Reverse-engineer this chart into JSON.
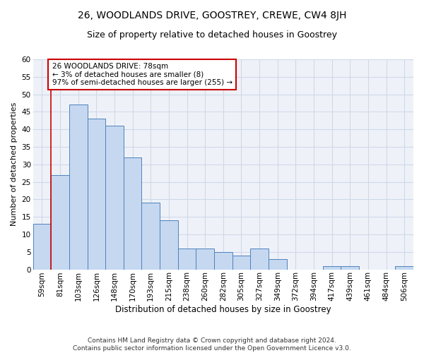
{
  "title": "26, WOODLANDS DRIVE, GOOSTREY, CREWE, CW4 8JH",
  "subtitle": "Size of property relative to detached houses in Goostrey",
  "xlabel": "Distribution of detached houses by size in Goostrey",
  "ylabel": "Number of detached properties",
  "categories": [
    "59sqm",
    "81sqm",
    "103sqm",
    "126sqm",
    "148sqm",
    "170sqm",
    "193sqm",
    "215sqm",
    "238sqm",
    "260sqm",
    "282sqm",
    "305sqm",
    "327sqm",
    "349sqm",
    "372sqm",
    "394sqm",
    "417sqm",
    "439sqm",
    "461sqm",
    "484sqm",
    "506sqm"
  ],
  "values": [
    13,
    27,
    47,
    43,
    41,
    32,
    19,
    14,
    6,
    6,
    5,
    4,
    6,
    3,
    0,
    0,
    1,
    1,
    0,
    0,
    1
  ],
  "bar_color": "#c5d8f0",
  "bar_edge_color": "#4f81bd",
  "bar_width": 1.0,
  "ylim": [
    0,
    60
  ],
  "yticks": [
    0,
    5,
    10,
    15,
    20,
    25,
    30,
    35,
    40,
    45,
    50,
    55,
    60
  ],
  "annotation_text": "26 WOODLANDS DRIVE: 78sqm\n← 3% of detached houses are smaller (8)\n97% of semi-detached houses are larger (255) →",
  "vline_x": 0.5,
  "vline_color": "#cc0000",
  "annotation_box_edgecolor": "#cc0000",
  "grid_color": "#d0d8e8",
  "background_color": "#eef2f8",
  "footer_text": "Contains HM Land Registry data © Crown copyright and database right 2024.\nContains public sector information licensed under the Open Government Licence v3.0.",
  "title_fontsize": 10,
  "subtitle_fontsize": 9,
  "xlabel_fontsize": 8.5,
  "ylabel_fontsize": 8,
  "tick_fontsize": 7.5,
  "annotation_fontsize": 7.5,
  "footer_fontsize": 6.5
}
